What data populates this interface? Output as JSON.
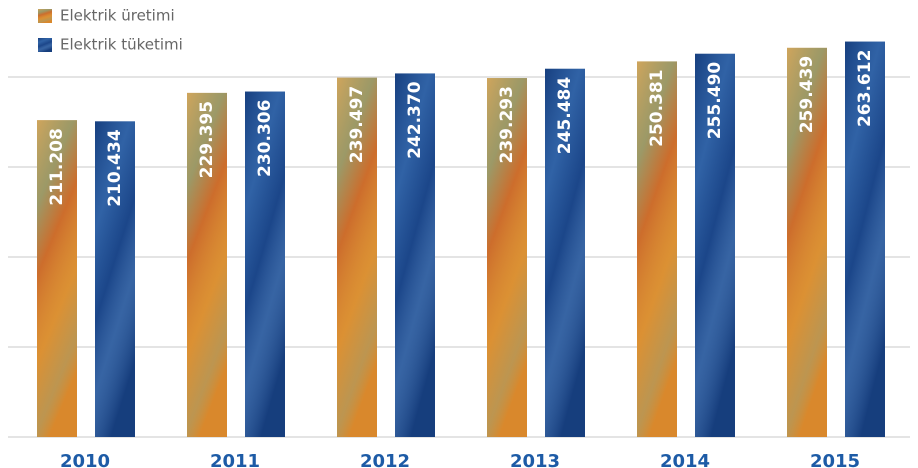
{
  "chart_data": {
    "type": "bar",
    "categories": [
      "2010",
      "2011",
      "2012",
      "2013",
      "2014",
      "2015"
    ],
    "series": [
      {
        "name": "Elektrik üretimi",
        "color": "#d98a2e",
        "values": [
          211.208,
          229.395,
          239.497,
          239.293,
          250.381,
          259.439
        ],
        "value_labels": [
          "211.208",
          "229.395",
          "239.497",
          "239.293",
          "250.381",
          "259.439"
        ]
      },
      {
        "name": "Elektrik tüketimi",
        "color": "#1f4f94",
        "values": [
          210.434,
          230.306,
          242.37,
          245.484,
          255.49,
          263.612
        ],
        "value_labels": [
          "210.434",
          "230.306",
          "242.370",
          "245.484",
          "255.490",
          "263.612"
        ]
      }
    ],
    "ylim": [
      0,
      288
    ],
    "yticks": [
      0,
      60,
      120,
      180,
      240
    ],
    "grid": true
  }
}
